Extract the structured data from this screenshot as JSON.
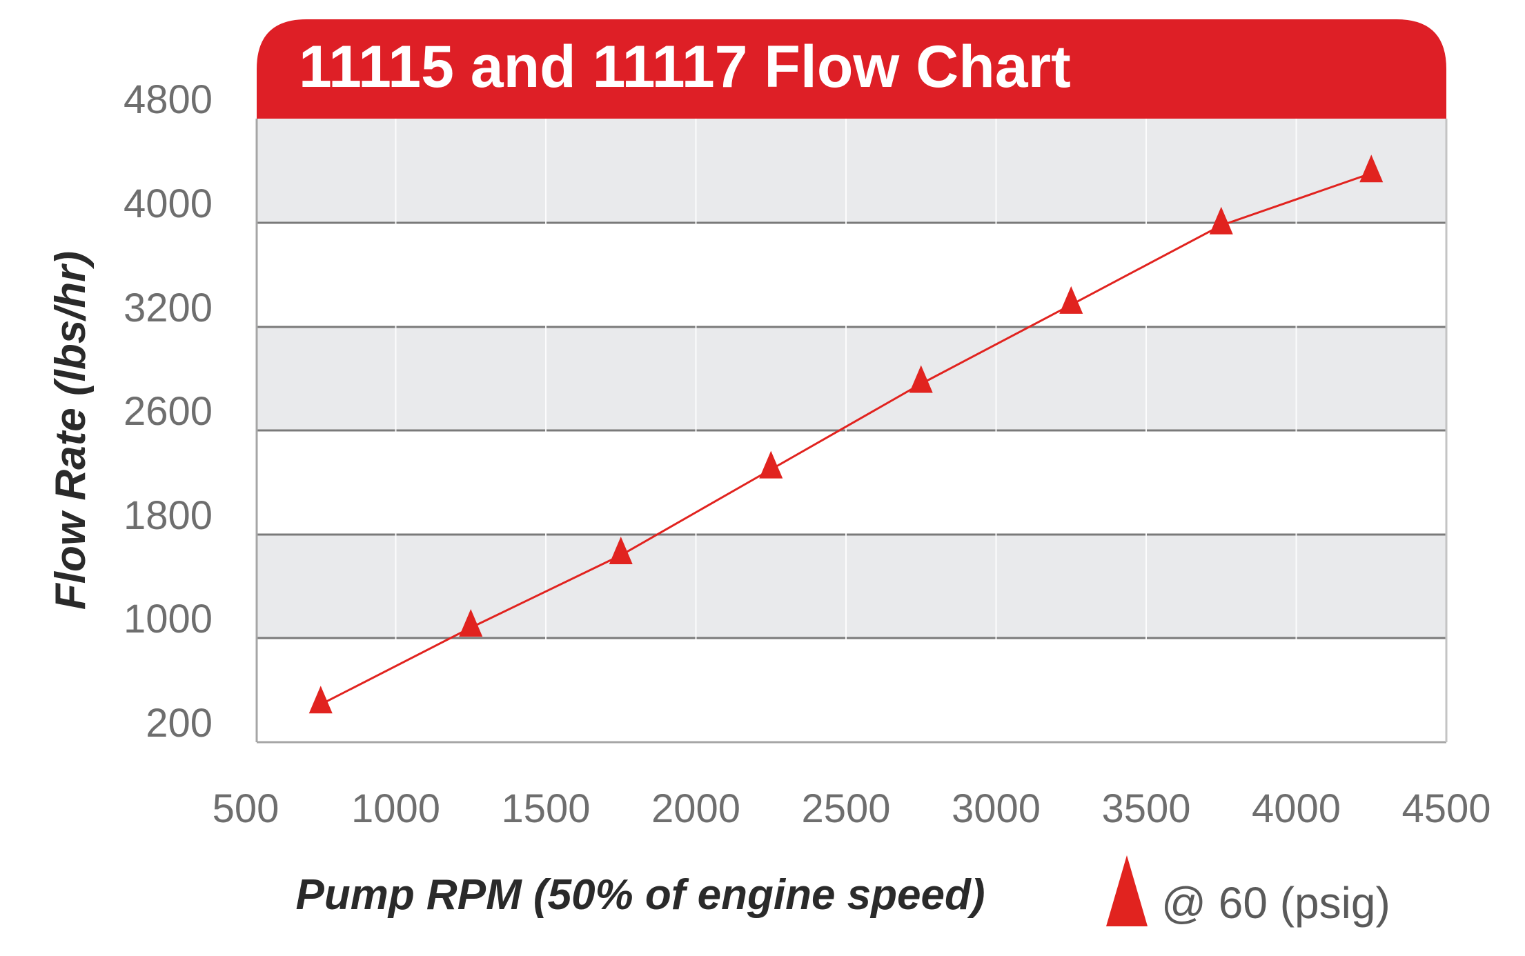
{
  "chart_data": {
    "type": "line",
    "title": "11115 and 11117 Flow Chart",
    "xlabel": "Pump RPM (50% of engine speed)",
    "ylabel": "Flow Rate (lbs/hr)",
    "xlim": [
      500,
      4500
    ],
    "ylim": [
      200,
      4800
    ],
    "x_ticks": [
      500,
      1000,
      1500,
      2000,
      2500,
      3000,
      3500,
      4000,
      4500
    ],
    "y_ticks": [
      200,
      1000,
      1800,
      2600,
      3200,
      4000,
      4800
    ],
    "grid": true,
    "legend_position": "bottom-right",
    "series": [
      {
        "name": "@ 60 (psig)",
        "color": "#e1231f",
        "marker": "triangle",
        "x": [
          750,
          1250,
          1750,
          2250,
          2750,
          3250,
          3750,
          4250
        ],
        "y": [
          490,
          1080,
          1640,
          2300,
          2870,
          3370,
          3980,
          4380
        ]
      }
    ]
  },
  "colors": {
    "title_band": "#de1f26",
    "band_fill": "#e9eaec",
    "grid_line": "#7a7a7a",
    "series": "#e1231f"
  }
}
